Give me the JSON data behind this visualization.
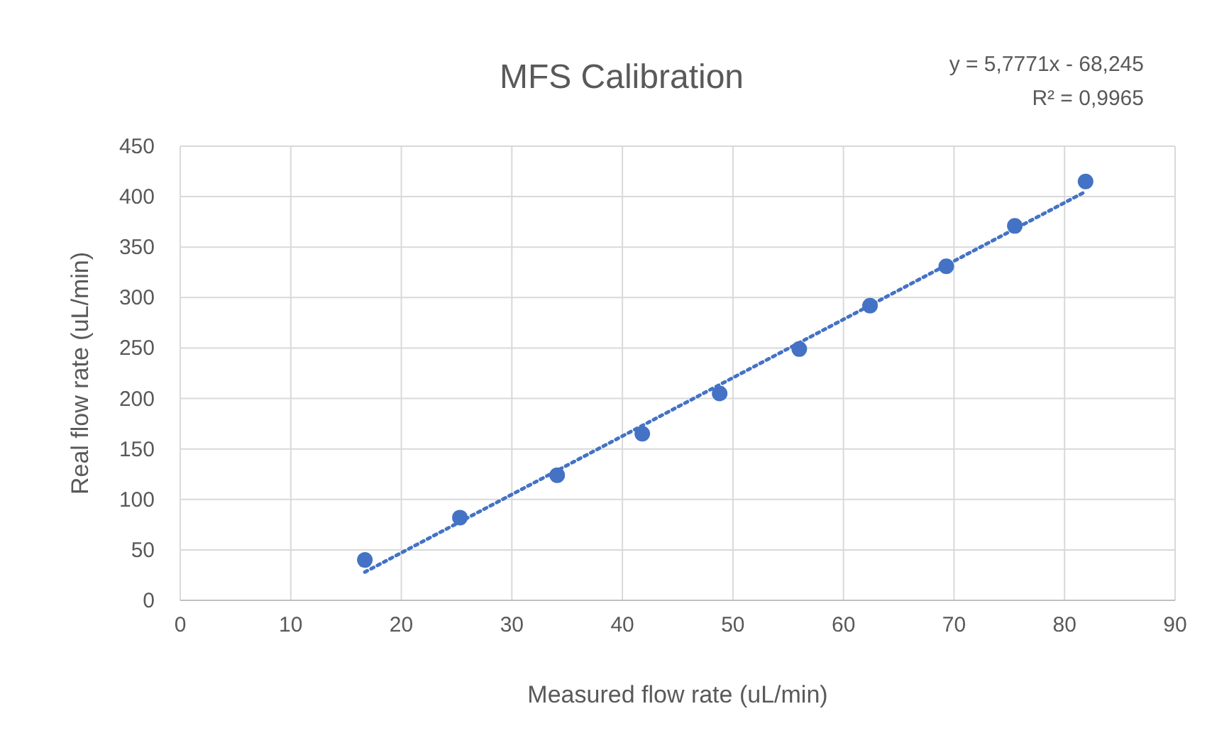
{
  "chart_data": {
    "type": "scatter",
    "title": "MFS Calibration",
    "xlabel": "Measured flow rate (uL/min)",
    "ylabel": "Real flow rate (uL/min)",
    "xlim": [
      0,
      90
    ],
    "xticks": [
      0,
      10,
      20,
      30,
      40,
      50,
      60,
      70,
      80,
      90
    ],
    "ylim": [
      0,
      450
    ],
    "yticks": [
      0,
      50,
      100,
      150,
      200,
      250,
      300,
      350,
      400,
      450
    ],
    "grid": true,
    "annotations": [
      "y = 5,7771x - 68,245",
      "R² = 0,9965"
    ],
    "series": [
      {
        "color": "#4472c4",
        "marker": "circle",
        "x": [
          16.7,
          25.3,
          34.1,
          41.8,
          48.8,
          56.0,
          62.4,
          69.3,
          75.5,
          81.9
        ],
        "values": [
          40,
          82,
          124,
          165,
          205,
          249,
          292,
          331,
          371,
          415
        ]
      },
      {
        "type": "line",
        "color": "#4472c4",
        "line_style": "dotted",
        "marker": "none",
        "x": [
          16.7,
          81.9
        ],
        "values": [
          28,
          405
        ]
      }
    ]
  }
}
